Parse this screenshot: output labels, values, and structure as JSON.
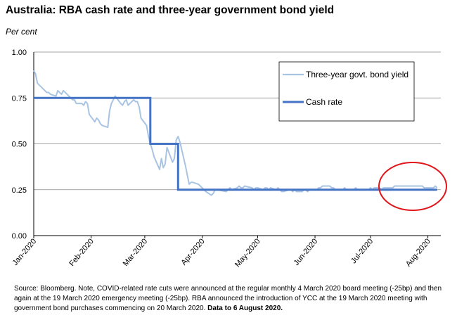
{
  "title": "Australia: RBA cash rate and three-year government bond yield",
  "unit_label": "Per cent",
  "source_text": "Source: Bloomberg.  Note, COVID-related rate cuts were announced at the regular monthly 4 March 2020 board meeting (-25bp) and then again at the 19 March 2020 emergency meeting (-25bp). RBA announced the introduction of YCC at the 19 March 2020 meeting with government bond purchases commencing on 20 March 2020.",
  "source_bold": "Data to 6 August 2020.",
  "colors": {
    "bond_yield": "#a9c4e2",
    "cash_rate": "#4472c4",
    "highlight_circle": "#e0161b",
    "gridline": "#888888"
  },
  "chart_data": {
    "type": "line",
    "title": "Australia: RBA cash rate and three-year government bond yield",
    "ylabel": "Per cent",
    "xlabel": "",
    "ylim": [
      0,
      1.0
    ],
    "yticks": [
      "0.00",
      "0.25",
      "0.50",
      "0.75",
      "1.00"
    ],
    "xticks": [
      "Jan-2020",
      "Feb-2020",
      "Mar-2020",
      "Apr-2020",
      "May-2020",
      "Jun-2020",
      "Jul-2020",
      "Aug-2020"
    ],
    "grid": true,
    "legend_position": "top-right",
    "highlight": "circle around bond yield, mid-July to August 2020",
    "series": [
      {
        "name": "Three-year govt. bond yield",
        "points": [
          [
            "2020-01-01",
            0.9
          ],
          [
            "2020-01-02",
            0.88
          ],
          [
            "2020-01-03",
            0.83
          ],
          [
            "2020-01-06",
            0.8
          ],
          [
            "2020-01-07",
            0.79
          ],
          [
            "2020-01-08",
            0.78
          ],
          [
            "2020-01-09",
            0.78
          ],
          [
            "2020-01-10",
            0.77
          ],
          [
            "2020-01-13",
            0.76
          ],
          [
            "2020-01-14",
            0.79
          ],
          [
            "2020-01-15",
            0.78
          ],
          [
            "2020-01-16",
            0.77
          ],
          [
            "2020-01-17",
            0.79
          ],
          [
            "2020-01-20",
            0.76
          ],
          [
            "2020-01-21",
            0.75
          ],
          [
            "2020-01-22",
            0.74
          ],
          [
            "2020-01-23",
            0.74
          ],
          [
            "2020-01-24",
            0.72
          ],
          [
            "2020-01-27",
            0.72
          ],
          [
            "2020-01-28",
            0.71
          ],
          [
            "2020-01-29",
            0.73
          ],
          [
            "2020-01-30",
            0.72
          ],
          [
            "2020-01-31",
            0.66
          ],
          [
            "2020-02-03",
            0.62
          ],
          [
            "2020-02-04",
            0.64
          ],
          [
            "2020-02-05",
            0.63
          ],
          [
            "2020-02-06",
            0.61
          ],
          [
            "2020-02-07",
            0.6
          ],
          [
            "2020-02-10",
            0.59
          ],
          [
            "2020-02-11",
            0.68
          ],
          [
            "2020-02-12",
            0.72
          ],
          [
            "2020-02-13",
            0.74
          ],
          [
            "2020-02-14",
            0.76
          ],
          [
            "2020-02-17",
            0.72
          ],
          [
            "2020-02-18",
            0.71
          ],
          [
            "2020-02-19",
            0.73
          ],
          [
            "2020-02-20",
            0.74
          ],
          [
            "2020-02-21",
            0.71
          ],
          [
            "2020-02-24",
            0.74
          ],
          [
            "2020-02-25",
            0.73
          ],
          [
            "2020-02-26",
            0.73
          ],
          [
            "2020-02-27",
            0.7
          ],
          [
            "2020-02-28",
            0.64
          ],
          [
            "2020-03-02",
            0.6
          ],
          [
            "2020-03-03",
            0.54
          ],
          [
            "2020-03-04",
            0.5
          ],
          [
            "2020-03-05",
            0.47
          ],
          [
            "2020-03-06",
            0.43
          ],
          [
            "2020-03-09",
            0.36
          ],
          [
            "2020-03-10",
            0.42
          ],
          [
            "2020-03-11",
            0.37
          ],
          [
            "2020-03-12",
            0.39
          ],
          [
            "2020-03-13",
            0.48
          ],
          [
            "2020-03-16",
            0.4
          ],
          [
            "2020-03-17",
            0.42
          ],
          [
            "2020-03-18",
            0.52
          ],
          [
            "2020-03-19",
            0.54
          ],
          [
            "2020-03-20",
            0.51
          ],
          [
            "2020-03-23",
            0.38
          ],
          [
            "2020-03-24",
            0.33
          ],
          [
            "2020-03-25",
            0.28
          ],
          [
            "2020-03-26",
            0.29
          ],
          [
            "2020-03-27",
            0.29
          ],
          [
            "2020-03-30",
            0.28
          ],
          [
            "2020-03-31",
            0.27
          ],
          [
            "2020-04-01",
            0.26
          ],
          [
            "2020-04-02",
            0.25
          ],
          [
            "2020-04-03",
            0.24
          ],
          [
            "2020-04-06",
            0.22
          ],
          [
            "2020-04-07",
            0.23
          ],
          [
            "2020-04-08",
            0.25
          ],
          [
            "2020-04-09",
            0.25
          ],
          [
            "2020-04-14",
            0.24
          ],
          [
            "2020-04-15",
            0.25
          ],
          [
            "2020-04-16",
            0.26
          ],
          [
            "2020-04-17",
            0.25
          ],
          [
            "2020-04-20",
            0.26
          ],
          [
            "2020-04-21",
            0.27
          ],
          [
            "2020-04-22",
            0.26
          ],
          [
            "2020-04-23",
            0.26
          ],
          [
            "2020-04-24",
            0.27
          ],
          [
            "2020-04-28",
            0.26
          ],
          [
            "2020-04-29",
            0.25
          ],
          [
            "2020-04-30",
            0.26
          ],
          [
            "2020-05-01",
            0.26
          ],
          [
            "2020-05-04",
            0.25
          ],
          [
            "2020-05-05",
            0.26
          ],
          [
            "2020-05-06",
            0.26
          ],
          [
            "2020-05-07",
            0.25
          ],
          [
            "2020-05-08",
            0.26
          ],
          [
            "2020-05-11",
            0.25
          ],
          [
            "2020-05-12",
            0.26
          ],
          [
            "2020-05-13",
            0.25
          ],
          [
            "2020-05-14",
            0.24
          ],
          [
            "2020-05-15",
            0.24
          ],
          [
            "2020-05-18",
            0.25
          ],
          [
            "2020-05-19",
            0.25
          ],
          [
            "2020-05-20",
            0.24
          ],
          [
            "2020-05-21",
            0.25
          ],
          [
            "2020-05-22",
            0.24
          ],
          [
            "2020-05-25",
            0.24
          ],
          [
            "2020-05-26",
            0.25
          ],
          [
            "2020-05-27",
            0.25
          ],
          [
            "2020-05-28",
            0.24
          ],
          [
            "2020-05-29",
            0.25
          ],
          [
            "2020-06-01",
            0.25
          ],
          [
            "2020-06-02",
            0.25
          ],
          [
            "2020-06-03",
            0.26
          ],
          [
            "2020-06-04",
            0.26
          ],
          [
            "2020-06-05",
            0.27
          ],
          [
            "2020-06-09",
            0.27
          ],
          [
            "2020-06-10",
            0.26
          ],
          [
            "2020-06-11",
            0.26
          ],
          [
            "2020-06-12",
            0.25
          ],
          [
            "2020-06-15",
            0.25
          ],
          [
            "2020-06-16",
            0.25
          ],
          [
            "2020-06-17",
            0.26
          ],
          [
            "2020-06-18",
            0.25
          ],
          [
            "2020-06-19",
            0.25
          ],
          [
            "2020-06-22",
            0.25
          ],
          [
            "2020-06-23",
            0.26
          ],
          [
            "2020-06-24",
            0.25
          ],
          [
            "2020-06-25",
            0.25
          ],
          [
            "2020-06-26",
            0.25
          ],
          [
            "2020-06-29",
            0.25
          ],
          [
            "2020-06-30",
            0.25
          ],
          [
            "2020-07-01",
            0.26
          ],
          [
            "2020-07-02",
            0.25
          ],
          [
            "2020-07-03",
            0.26
          ],
          [
            "2020-07-06",
            0.26
          ],
          [
            "2020-07-07",
            0.25
          ],
          [
            "2020-07-08",
            0.26
          ],
          [
            "2020-07-09",
            0.26
          ],
          [
            "2020-07-10",
            0.26
          ],
          [
            "2020-07-13",
            0.26
          ],
          [
            "2020-07-14",
            0.27
          ],
          [
            "2020-07-15",
            0.27
          ],
          [
            "2020-07-16",
            0.27
          ],
          [
            "2020-07-17",
            0.27
          ],
          [
            "2020-07-20",
            0.27
          ],
          [
            "2020-07-21",
            0.27
          ],
          [
            "2020-07-22",
            0.27
          ],
          [
            "2020-07-23",
            0.27
          ],
          [
            "2020-07-24",
            0.27
          ],
          [
            "2020-07-27",
            0.27
          ],
          [
            "2020-07-28",
            0.27
          ],
          [
            "2020-07-29",
            0.27
          ],
          [
            "2020-07-30",
            0.26
          ],
          [
            "2020-07-31",
            0.26
          ],
          [
            "2020-08-03",
            0.26
          ],
          [
            "2020-08-04",
            0.26
          ],
          [
            "2020-08-05",
            0.27
          ],
          [
            "2020-08-06",
            0.26
          ]
        ]
      },
      {
        "name": "Cash rate",
        "points": [
          [
            "2020-01-01",
            0.75
          ],
          [
            "2020-03-04",
            0.75
          ],
          [
            "2020-03-04",
            0.5
          ],
          [
            "2020-03-19",
            0.5
          ],
          [
            "2020-03-19",
            0.25
          ],
          [
            "2020-08-06",
            0.25
          ]
        ]
      }
    ]
  }
}
